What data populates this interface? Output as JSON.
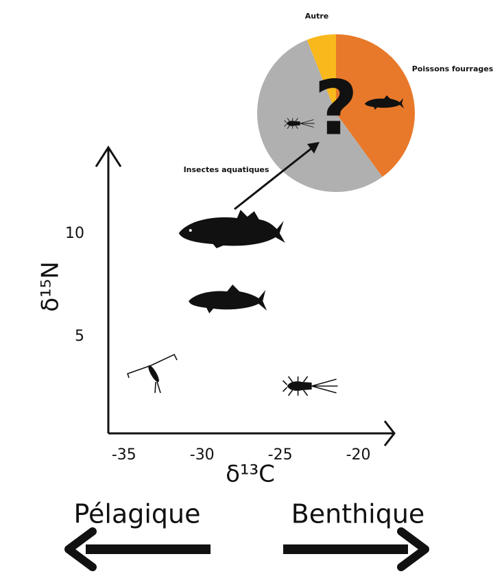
{
  "chart_data": [
    {
      "type": "scatter",
      "x": [
        -33.1,
        -28.2,
        -28.4,
        -23.6
      ],
      "values": [
        3.2,
        10.1,
        6.8,
        2.6
      ],
      "color": "#111111",
      "xlim": [
        -36,
        -17.7
      ],
      "ylim": [
        0.3,
        14.2
      ],
      "xticks": [
        -35,
        -30,
        -25,
        -20
      ],
      "yticks": [
        5,
        10
      ],
      "xlabel": "δ¹³C",
      "ylabel": "δ¹⁵N",
      "annotations": [
        "Pélagique",
        "Benthique"
      ]
    },
    {
      "type": "pie",
      "categories": [
        "Poissons fourrages",
        "Insectes aquatiques",
        "Autre"
      ],
      "values": [
        40,
        54,
        6
      ],
      "colors": [
        "#e8792a",
        "#b0b0b0",
        "#f9b81b"
      ],
      "annotation": "?"
    }
  ]
}
